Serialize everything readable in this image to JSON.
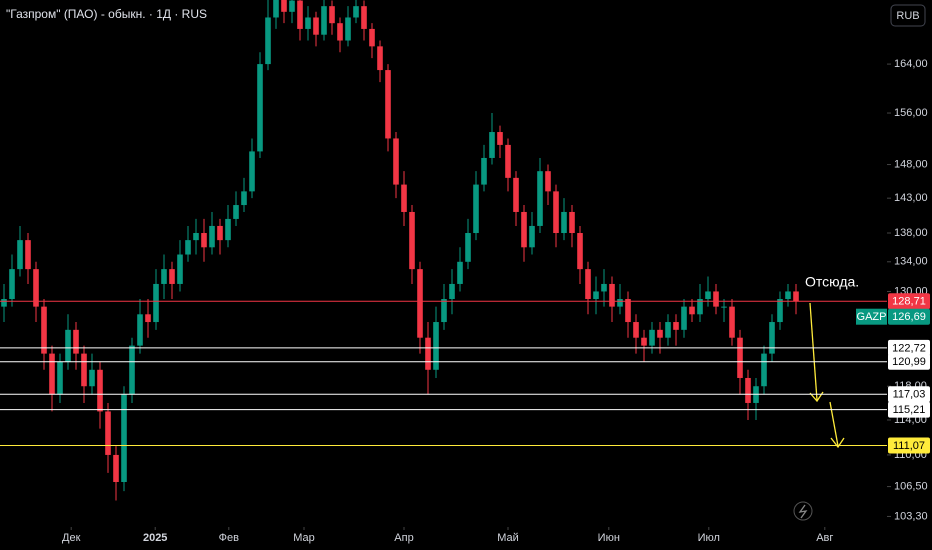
{
  "chart_data": {
    "type": "candlestick",
    "title": "\"Газпром\" (ПАО) - обыкн. · 1Д · RUS",
    "currency": "RUB",
    "annotation": "Отсюда.",
    "log_scale": true,
    "grid": false,
    "up_color": "#089981",
    "down_color": "#f23645",
    "ylim": [
      102.4,
      175.1
    ],
    "yticks": [
      {
        "value": 164,
        "label": "164,00"
      },
      {
        "value": 156,
        "label": "156,00"
      },
      {
        "value": 148,
        "label": "148,00"
      },
      {
        "value": 143,
        "label": "143,00"
      },
      {
        "value": 138,
        "label": "138,00"
      },
      {
        "value": 134,
        "label": "134,00"
      },
      {
        "value": 130,
        "label": "130,00"
      },
      {
        "value": 118,
        "label": "118,00"
      },
      {
        "value": 114,
        "label": "114,00"
      },
      {
        "value": 110,
        "label": "110,00"
      },
      {
        "value": 106.5,
        "label": "106,50"
      },
      {
        "value": 103.3,
        "label": "103,30"
      }
    ],
    "xlim": [
      -0.5,
      109.5
    ],
    "xticks": [
      {
        "value": 8.4,
        "label": "Дек"
      },
      {
        "value": 18.9,
        "label": "2025"
      },
      {
        "value": 28.1,
        "label": "Фев"
      },
      {
        "value": 37.5,
        "label": "Мар"
      },
      {
        "value": 50,
        "label": "Апр"
      },
      {
        "value": 63,
        "label": "Май"
      },
      {
        "value": 75.6,
        "label": "Июн"
      },
      {
        "value": 88.1,
        "label": "Июл"
      },
      {
        "value": 102.6,
        "label": "Авг"
      }
    ],
    "open": [
      128,
      129,
      133,
      137,
      133,
      128,
      122,
      117,
      121,
      125,
      122,
      118,
      120,
      115,
      110,
      107,
      117,
      123,
      127,
      126,
      131,
      133,
      131,
      135,
      137,
      138,
      136,
      139,
      137,
      140,
      142,
      144,
      150,
      164,
      172,
      176,
      173,
      175,
      170,
      172,
      169,
      174,
      171,
      168,
      172,
      174,
      170,
      167,
      163,
      152,
      145,
      141,
      133,
      124,
      120,
      126,
      129,
      131,
      134,
      138,
      145,
      149,
      153,
      151,
      146,
      141,
      136,
      139,
      147,
      144,
      138,
      141,
      138,
      133,
      129,
      130,
      131,
      128,
      129,
      126,
      124,
      123,
      125,
      124,
      126,
      125,
      128,
      127,
      129,
      130,
      128,
      128,
      124,
      119,
      116,
      118,
      122,
      126,
      129,
      130
    ],
    "high": [
      131,
      135,
      139,
      138,
      134,
      129,
      123,
      122,
      127,
      126,
      123,
      122,
      121,
      116,
      111,
      118,
      124,
      129,
      129,
      133,
      135,
      134,
      137,
      139,
      140,
      140,
      141,
      140,
      142,
      144,
      146,
      152,
      166,
      176,
      178,
      177,
      177,
      176,
      174,
      173,
      176,
      175,
      172,
      174,
      177,
      175,
      171,
      168,
      164,
      153,
      147,
      142,
      134,
      126,
      128,
      131,
      133,
      136,
      140,
      147,
      151,
      156,
      154,
      152,
      147,
      142,
      141,
      149,
      148,
      145,
      143,
      142,
      139,
      134,
      132,
      133,
      132,
      131,
      130,
      127,
      125,
      126,
      126,
      127,
      127,
      129,
      129,
      131,
      132,
      131,
      129,
      129,
      125,
      120,
      119,
      123,
      127,
      130,
      131,
      131
    ],
    "low": [
      126,
      128,
      132,
      131,
      126,
      120,
      115,
      116,
      120,
      120,
      116,
      117,
      113,
      108,
      105,
      106,
      116,
      122,
      124,
      125,
      129,
      129,
      130,
      134,
      135,
      134,
      135,
      135,
      136,
      139,
      141,
      143,
      149,
      163,
      170,
      171,
      171,
      168,
      168,
      167,
      168,
      169,
      166,
      167,
      171,
      168,
      165,
      161,
      150,
      143,
      139,
      131,
      122,
      117,
      119,
      125,
      127,
      130,
      133,
      137,
      144,
      148,
      149,
      144,
      139,
      134,
      135,
      138,
      142,
      136,
      137,
      136,
      131,
      127,
      127,
      128,
      126,
      127,
      124,
      122,
      121,
      122,
      122,
      123,
      123,
      124,
      126,
      126,
      128,
      127,
      126,
      123,
      117,
      114,
      114,
      117,
      121,
      125,
      128,
      127
    ],
    "close": [
      129,
      133,
      137,
      133,
      128,
      122,
      117,
      121,
      125,
      122,
      118,
      120,
      115,
      110,
      107,
      117,
      123,
      127,
      126,
      131,
      133,
      131,
      135,
      137,
      138,
      136,
      139,
      137,
      140,
      142,
      144,
      150,
      164,
      172,
      176,
      173,
      175,
      170,
      172,
      169,
      174,
      171,
      168,
      172,
      174,
      170,
      167,
      163,
      152,
      145,
      141,
      133,
      124,
      120,
      126,
      129,
      131,
      134,
      138,
      145,
      149,
      153,
      151,
      146,
      141,
      136,
      139,
      147,
      144,
      138,
      141,
      138,
      133,
      129,
      130,
      131,
      128,
      129,
      126,
      124,
      123,
      125,
      124,
      126,
      125,
      128,
      127,
      129,
      130,
      128,
      128,
      124,
      119,
      116,
      118,
      122,
      126,
      129,
      130,
      128.71
    ],
    "price_lines": [
      {
        "value": 128.71,
        "label": "128,71",
        "color": "#f23645"
      },
      {
        "value": 122.72,
        "label": "122,72",
        "color": "#ffffff"
      },
      {
        "value": 120.99,
        "label": "120,99",
        "color": "#ffffff"
      },
      {
        "value": 117.03,
        "label": "117,03",
        "color": "#ffffff"
      },
      {
        "value": 115.21,
        "label": "115,21",
        "color": "#ffffff"
      },
      {
        "value": 111.07,
        "label": "111,07",
        "color": "#ffeb3b"
      }
    ],
    "symbol_label": {
      "name": "GAZP",
      "value": 126.69,
      "label": "126,69",
      "color": "#089981"
    }
  }
}
